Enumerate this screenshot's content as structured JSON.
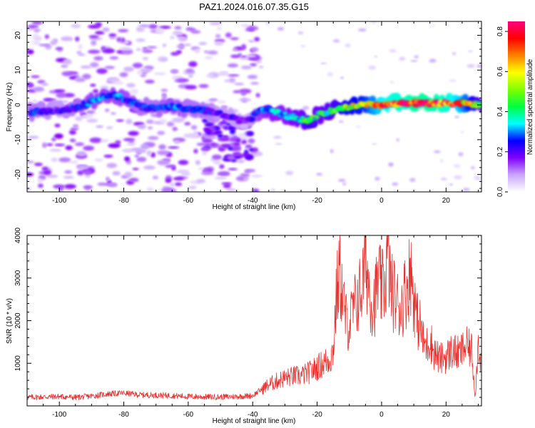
{
  "title": "PAZ1.2024.016.07.35.G15",
  "chart_data": [
    {
      "type": "heatmap",
      "xlabel": "Height of straight line (km)",
      "ylabel": "Frequency (Hz)",
      "xlim": [
        -110,
        31
      ],
      "ylim": [
        -25,
        24
      ],
      "xticks": [
        "-100",
        "-80",
        "-60",
        "-40",
        "-20",
        "0",
        "20"
      ],
      "xtick_values": [
        -100,
        -80,
        -60,
        -40,
        -20,
        0,
        20
      ],
      "yticks": [
        "20",
        "10",
        "0",
        "-10",
        "-20"
      ],
      "ytick_values": [
        20,
        10,
        0,
        -10,
        -20
      ],
      "colorbar": {
        "label": "Normalized spectral amplitude",
        "range": [
          0,
          0.85
        ],
        "ticks": [
          "0.0",
          "0.2",
          "0.4",
          "0.6",
          "0.8"
        ],
        "tick_values": [
          0.0,
          0.2,
          0.4,
          0.6,
          0.8
        ],
        "colors": [
          "#ffffff",
          "#c9a6ff",
          "#8000ff",
          "#0000ff",
          "#00ffff",
          "#00ff40",
          "#80ff00",
          "#ffff00",
          "#ff8000",
          "#ff0000",
          "#ff0080"
        ]
      },
      "ridge": {
        "x": [
          -108,
          -100,
          -95,
          -90,
          -85,
          -80,
          -75,
          -70,
          -65,
          -60,
          -55,
          -50,
          -45,
          -42,
          -38,
          -35,
          -30,
          -25,
          -22,
          -20,
          -15,
          -10,
          -5,
          0,
          5,
          10,
          15,
          20,
          25,
          31
        ],
        "y": [
          -2,
          -1.5,
          -1,
          1,
          3,
          2,
          -0.5,
          -1,
          -0.5,
          -1,
          -1.5,
          -2.5,
          -4,
          -5,
          -2,
          -1.5,
          -3,
          -4,
          -4.5,
          -3,
          -1.5,
          -0.5,
          0,
          0,
          0.5,
          0.5,
          0.5,
          0.5,
          0.5,
          0
        ],
        "amplitude": [
          0.25,
          0.2,
          0.25,
          0.3,
          0.3,
          0.3,
          0.25,
          0.25,
          0.3,
          0.25,
          0.25,
          0.2,
          0.2,
          0.15,
          0.3,
          0.35,
          0.35,
          0.4,
          0.5,
          0.4,
          0.45,
          0.55,
          0.6,
          0.75,
          0.8,
          0.85,
          0.85,
          0.8,
          0.7,
          0.4
        ]
      }
    },
    {
      "type": "line",
      "xlabel": "Height of straight line (km)",
      "ylabel": "SNR (10 * v/v)",
      "xlim": [
        -110,
        31
      ],
      "ylim": [
        0,
        4000
      ],
      "xticks": [
        "-100",
        "-80",
        "-60",
        "-40",
        "-20",
        "0",
        "20"
      ],
      "xtick_values": [
        -100,
        -80,
        -60,
        -40,
        -20,
        0,
        20
      ],
      "yticks": [
        "1000",
        "2000",
        "3000",
        "4000"
      ],
      "ytick_values": [
        1000,
        2000,
        3000,
        4000
      ],
      "line_color": "#e8302c",
      "series": [
        {
          "x": [
            -110,
            -105,
            -100,
            -95,
            -90,
            -85,
            -80,
            -75,
            -70,
            -65,
            -60,
            -55,
            -50,
            -45,
            -40,
            -38,
            -35,
            -32,
            -30,
            -27,
            -25,
            -22,
            -20,
            -18,
            -16,
            -15,
            -14,
            -13,
            -12,
            -11,
            -10,
            -9,
            -8,
            -7,
            -6,
            -5,
            -4,
            -3,
            -2,
            -1,
            0,
            1,
            2,
            3,
            4,
            5,
            6,
            7,
            8,
            9,
            10,
            11,
            12,
            13,
            14,
            15,
            16,
            17,
            18,
            20,
            22,
            24,
            26,
            28,
            29,
            30,
            31
          ],
          "y": [
            200,
            210,
            220,
            200,
            230,
            280,
            300,
            260,
            250,
            240,
            220,
            210,
            210,
            220,
            240,
            350,
            500,
            600,
            650,
            700,
            700,
            800,
            900,
            1000,
            1100,
            1300,
            2600,
            3200,
            2500,
            2000,
            1900,
            2200,
            2400,
            2600,
            2800,
            3500,
            2900,
            2400,
            2500,
            3000,
            2700,
            2900,
            3500,
            2700,
            2600,
            2400,
            2300,
            2600,
            2800,
            3200,
            2600,
            2000,
            1900,
            1500,
            1400,
            1600,
            1300,
            1200,
            1100,
            1150,
            1300,
            1200,
            1400,
            1300,
            200,
            1500,
            1000
          ]
        }
      ]
    }
  ]
}
